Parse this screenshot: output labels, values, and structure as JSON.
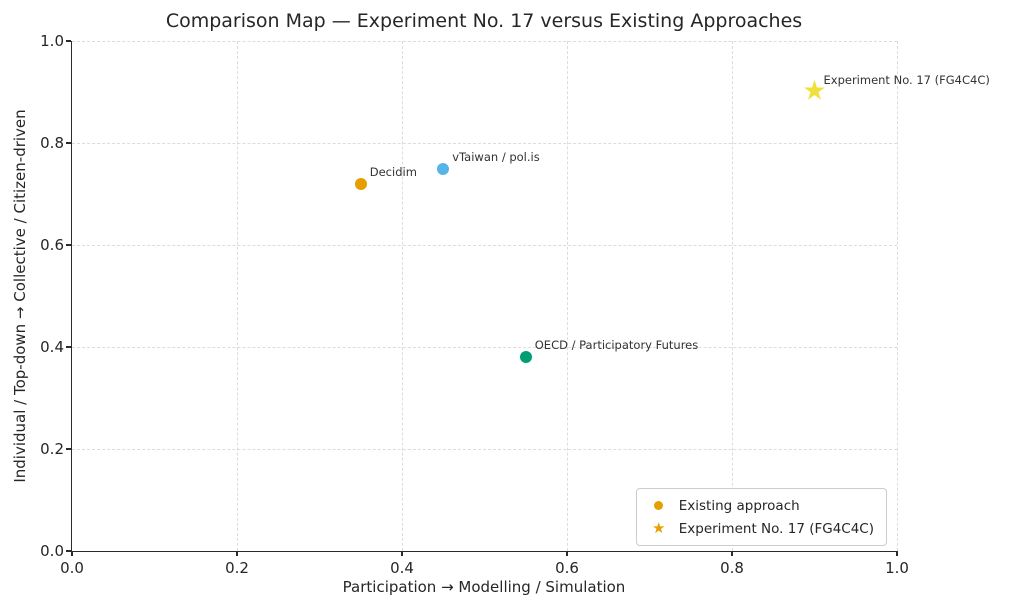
{
  "chart_data": {
    "type": "scatter",
    "title": "Comparison Map — Experiment No. 17 versus Existing Approaches",
    "xlabel": "Participation → Modelling / Simulation",
    "ylabel": "Individual / Top-down → Collective / Citizen-driven",
    "xlim": [
      0.0,
      1.0
    ],
    "ylim": [
      0.0,
      1.0
    ],
    "xticks": [
      0.0,
      0.2,
      0.4,
      0.6,
      0.8,
      1.0
    ],
    "xtick_labels": [
      "0.0",
      "0.2",
      "0.4",
      "0.6",
      "0.8",
      "1.0"
    ],
    "yticks": [
      0.0,
      0.2,
      0.4,
      0.6,
      0.8,
      1.0
    ],
    "ytick_labels": [
      "0.0",
      "0.2",
      "0.4",
      "0.6",
      "0.8",
      "1.0"
    ],
    "grid": true,
    "grid_style": "dashed",
    "legend_position": "lower-right",
    "series": [
      {
        "name": "Existing approach",
        "marker": "circle",
        "legend_color": "#E69F00",
        "points": [
          {
            "label": "Decidim",
            "x": 0.35,
            "y": 0.72,
            "color": "#E69F00"
          },
          {
            "label": "vTaiwan / pol.is",
            "x": 0.45,
            "y": 0.75,
            "color": "#56B4E9"
          },
          {
            "label": "OECD / Participatory Futures",
            "x": 0.55,
            "y": 0.38,
            "color": "#009E73"
          }
        ]
      },
      {
        "name": "Experiment No. 17 (FG4C4C)",
        "marker": "star",
        "legend_color": "#E69F00",
        "points": [
          {
            "label": "Experiment No. 17 (FG4C4C)",
            "x": 0.9,
            "y": 0.9,
            "color": "#F0E03A"
          }
        ]
      }
    ]
  }
}
